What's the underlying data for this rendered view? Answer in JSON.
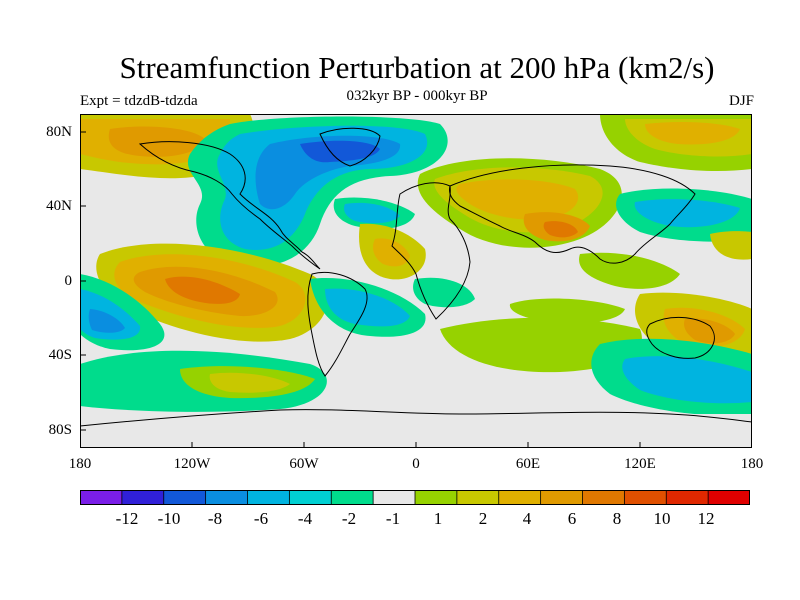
{
  "title": "Streamfunction Perturbation at 200 hPa (km2/s)",
  "subtitle": "032kyr BP - 000kyr BP",
  "left_label": "Expt = tdzdB-tdzda",
  "right_label": "DJF",
  "lat_ticks": [
    "80N",
    "40N",
    "0",
    "40S",
    "80S"
  ],
  "lon_ticks": [
    "180",
    "120W",
    "60W",
    "0",
    "60E",
    "120E",
    "180"
  ],
  "colorbar": {
    "colors": [
      "#7a1ee8",
      "#3020d8",
      "#1258d8",
      "#0a8ee0",
      "#00b4e0",
      "#00d0d2",
      "#00dc8c",
      "#e8e8e8",
      "#96d200",
      "#c8c800",
      "#e0b000",
      "#e09a00",
      "#e07800",
      "#e05000",
      "#e02800",
      "#e00000"
    ],
    "labels": [
      "-12",
      "-10",
      "-8",
      "-6",
      "-4",
      "-2",
      "-1",
      "1",
      "2",
      "4",
      "6",
      "8",
      "10",
      "12"
    ]
  }
}
